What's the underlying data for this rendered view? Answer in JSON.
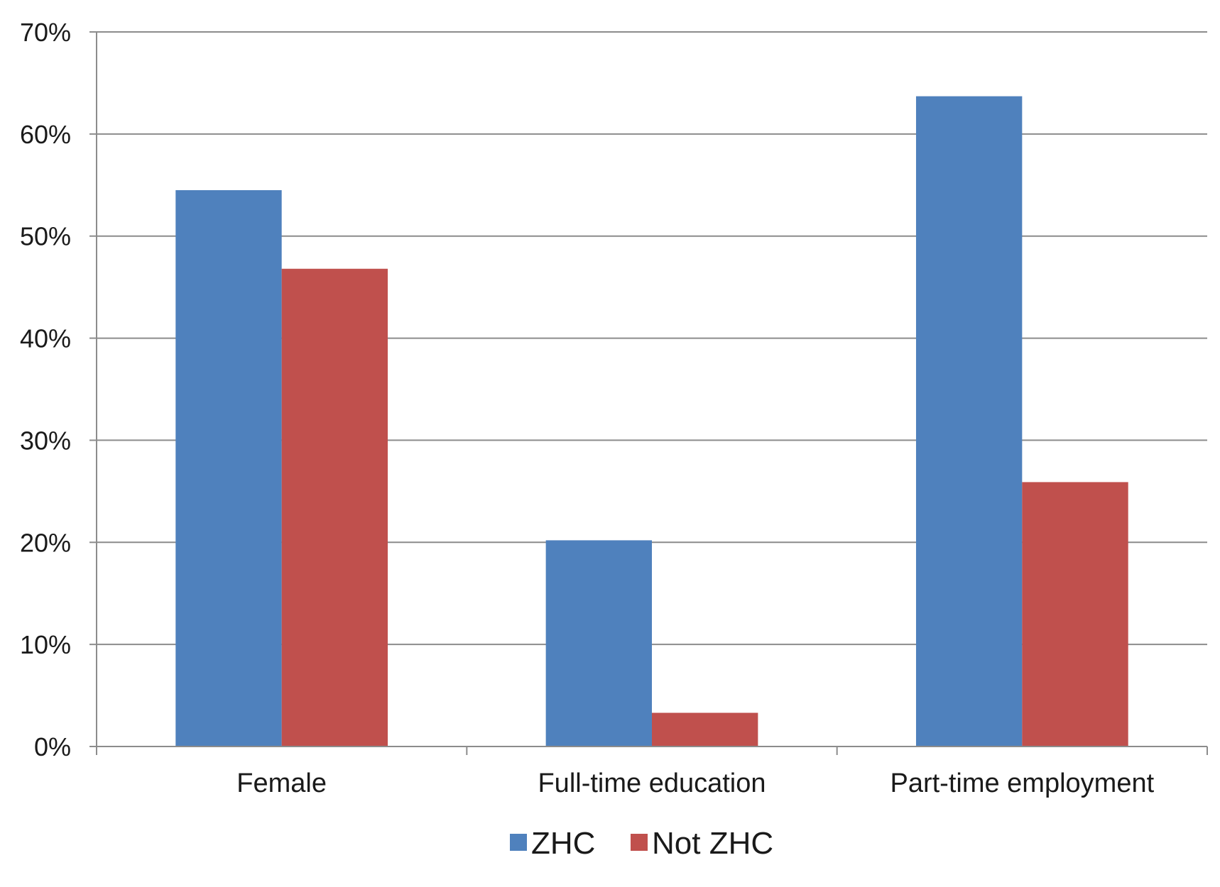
{
  "chart_data": {
    "type": "bar",
    "categories": [
      "Female",
      "Full-time education",
      "Part-time employment"
    ],
    "series": [
      {
        "name": "ZHC",
        "color": "#4f81bd",
        "values": [
          54.5,
          20.2,
          63.7
        ]
      },
      {
        "name": "Not ZHC",
        "color": "#c0504d",
        "values": [
          46.8,
          3.3,
          25.9
        ]
      }
    ],
    "y_ticks": [
      "0%",
      "10%",
      "20%",
      "30%",
      "40%",
      "50%",
      "60%",
      "70%"
    ],
    "ylim": [
      0,
      70
    ],
    "grid": true,
    "legend_position": "bottom"
  }
}
